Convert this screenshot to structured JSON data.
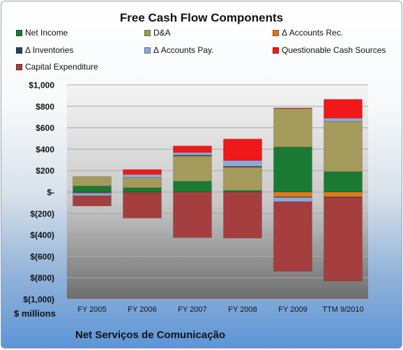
{
  "chart_data": {
    "type": "bar",
    "stacked": true,
    "title": "Free Cash Flow Components",
    "units_label": "$ millions",
    "footer": "Net Serviços de Comunicação",
    "categories": [
      "FY 2005",
      "FY 2006",
      "FY 2007",
      "FY 2008",
      "FY 2009",
      "TTM 9/2010"
    ],
    "ylim": [
      -1000,
      1000
    ],
    "yticks": [
      {
        "value": 1000,
        "label": "$1,000"
      },
      {
        "value": 800,
        "label": "$800"
      },
      {
        "value": 600,
        "label": "$600"
      },
      {
        "value": 400,
        "label": "$400"
      },
      {
        "value": 200,
        "label": "$200"
      },
      {
        "value": 0,
        "label": "$-"
      },
      {
        "value": -200,
        "label": "$(200)"
      },
      {
        "value": -400,
        "label": "$(400)"
      },
      {
        "value": -600,
        "label": "$(600)"
      },
      {
        "value": -800,
        "label": "$(800)"
      },
      {
        "value": -1000,
        "label": "$(1,000)"
      }
    ],
    "grid": true,
    "legend_position": "top",
    "series": [
      {
        "name": "Net Income",
        "color": "#1a7a32",
        "values": [
          55,
          40,
          100,
          15,
          420,
          190
        ]
      },
      {
        "name": "D&A",
        "color": "#a39a5c",
        "values": [
          90,
          95,
          235,
          215,
          360,
          470
        ]
      },
      {
        "name": "Δ Accounts Rec.",
        "color": "#e07a18",
        "values": [
          -5,
          -5,
          5,
          5,
          -45,
          -45
        ]
      },
      {
        "name": "Δ Inventories",
        "color": "#2a3f5f",
        "values": [
          -5,
          -3,
          5,
          5,
          -5,
          -5
        ]
      },
      {
        "name": "Δ Accounts Pay.",
        "color": "#8fa8d8",
        "values": [
          -25,
          30,
          25,
          55,
          -40,
          30
        ]
      },
      {
        "name": "Questionable Cash Sources",
        "color": "#f01818",
        "values": [
          0,
          45,
          60,
          200,
          5,
          175
        ]
      },
      {
        "name": "Capital Expenditure",
        "color": "#a53f3f",
        "values": [
          -95,
          -235,
          -425,
          -430,
          -650,
          -780
        ]
      }
    ]
  }
}
